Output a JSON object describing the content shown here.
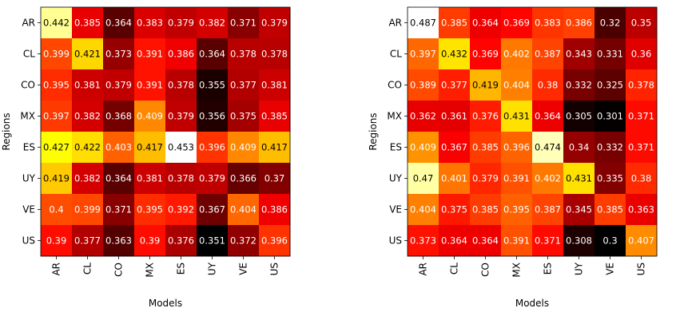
{
  "chart_data": [
    {
      "type": "heatmap",
      "colormap": "hot",
      "xlabel": "Models",
      "ylabel": "Regions",
      "x_categories": [
        "AR",
        "CL",
        "CO",
        "MX",
        "ES",
        "UY",
        "VE",
        "US"
      ],
      "y_categories": [
        "AR",
        "CL",
        "CO",
        "MX",
        "ES",
        "UY",
        "VE",
        "US"
      ],
      "values": [
        [
          "0.442",
          "0.385",
          "0.364",
          "0.383",
          "0.379",
          "0.382",
          "0.371",
          "0.379"
        ],
        [
          "0.399",
          "0.421",
          "0.373",
          "0.391",
          "0.386",
          "0.364",
          "0.378",
          "0.378"
        ],
        [
          "0.395",
          "0.381",
          "0.379",
          "0.391",
          "0.378",
          "0.355",
          "0.377",
          "0.381"
        ],
        [
          "0.397",
          "0.382",
          "0.368",
          "0.409",
          "0.379",
          "0.356",
          "0.375",
          "0.385"
        ],
        [
          "0.427",
          "0.422",
          "0.403",
          "0.417",
          "0.453",
          "0.396",
          "0.409",
          "0.417"
        ],
        [
          "0.419",
          "0.382",
          "0.364",
          "0.381",
          "0.378",
          "0.379",
          "0.366",
          "0.37"
        ],
        [
          "0.4",
          "0.399",
          "0.371",
          "0.395",
          "0.392",
          "0.367",
          "0.404",
          "0.386"
        ],
        [
          "0.39",
          "0.377",
          "0.363",
          "0.39",
          "0.376",
          "0.351",
          "0.372",
          "0.396"
        ]
      ]
    },
    {
      "type": "heatmap",
      "colormap": "hot",
      "xlabel": "Models",
      "ylabel": "Regions",
      "x_categories": [
        "AR",
        "CL",
        "CO",
        "MX",
        "ES",
        "UY",
        "VE",
        "US"
      ],
      "y_categories": [
        "AR",
        "CL",
        "CO",
        "MX",
        "ES",
        "UY",
        "VE",
        "US"
      ],
      "values": [
        [
          "0.487",
          "0.385",
          "0.364",
          "0.369",
          "0.383",
          "0.386",
          "0.32",
          "0.35"
        ],
        [
          "0.397",
          "0.432",
          "0.369",
          "0.402",
          "0.387",
          "0.343",
          "0.331",
          "0.36"
        ],
        [
          "0.389",
          "0.377",
          "0.419",
          "0.404",
          "0.38",
          "0.332",
          "0.325",
          "0.378"
        ],
        [
          "0.362",
          "0.361",
          "0.376",
          "0.431",
          "0.364",
          "0.305",
          "0.301",
          "0.371"
        ],
        [
          "0.409",
          "0.367",
          "0.385",
          "0.396",
          "0.474",
          "0.34",
          "0.332",
          "0.371"
        ],
        [
          "0.47",
          "0.401",
          "0.379",
          "0.391",
          "0.402",
          "0.431",
          "0.335",
          "0.38"
        ],
        [
          "0.404",
          "0.375",
          "0.385",
          "0.395",
          "0.387",
          "0.345",
          "0.385",
          "0.363"
        ],
        [
          "0.373",
          "0.364",
          "0.364",
          "0.391",
          "0.371",
          "0.308",
          "0.3",
          "0.407"
        ]
      ]
    }
  ]
}
